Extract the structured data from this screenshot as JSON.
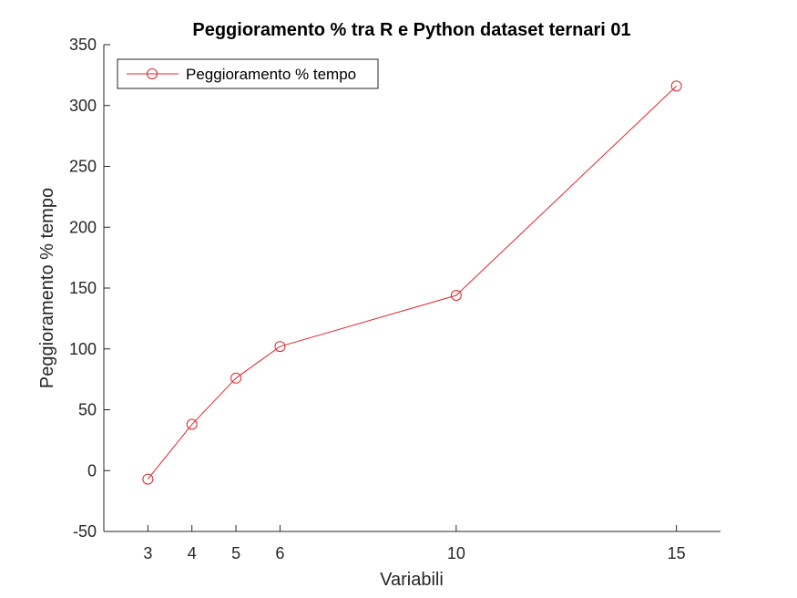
{
  "chart_data": {
    "type": "line",
    "title": "Peggioramento % tra R e Python dataset ternari 01",
    "xlabel": "Variabili",
    "ylabel": "Peggioramento % tempo",
    "xlim": [
      2,
      16
    ],
    "ylim": [
      -50,
      350
    ],
    "xticks": [
      3,
      4,
      5,
      6,
      10,
      15
    ],
    "yticks": [
      -50,
      0,
      50,
      100,
      150,
      200,
      250,
      300,
      350
    ],
    "grid": false,
    "legend_position": "top-left",
    "series": [
      {
        "name": "Peggioramento % tempo",
        "color": "#e0242b",
        "marker": "circle",
        "x": [
          3,
          4,
          5,
          6,
          10,
          15
        ],
        "y": [
          -7,
          38,
          76,
          102,
          144,
          316
        ]
      }
    ]
  }
}
